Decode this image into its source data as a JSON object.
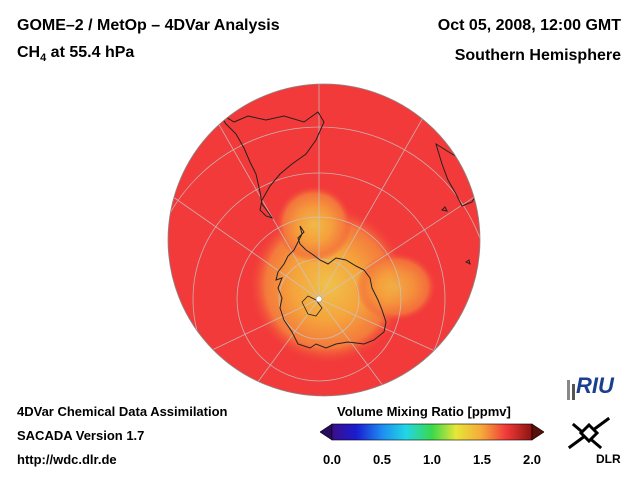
{
  "header": {
    "title": "GOME–2 / MetOp – 4DVar Analysis",
    "species_main": "CH",
    "species_sub": "4",
    "species_rest": " at 55.4 hPa",
    "date": "Oct 05, 2008, 12:00 GMT",
    "region": "Southern Hemisphere"
  },
  "footer": {
    "line1": "4DVar Chemical Data Assimilation",
    "line2": "SACADA Version 1.7",
    "line3": "http://wdc.dlr.de"
  },
  "colorbar": {
    "title": "Volume Mixing Ratio [ppmv]",
    "ticks": [
      "0.0",
      "0.5",
      "1.0",
      "1.5",
      "2.0"
    ],
    "range": [
      0.0,
      2.0
    ]
  },
  "logos": {
    "riu": "RIU",
    "dlr": "DLR"
  },
  "colors": {
    "map_background": "#f23a3a",
    "antarctic_low": "#f5a83a",
    "grid": "#b9b9b9"
  }
}
